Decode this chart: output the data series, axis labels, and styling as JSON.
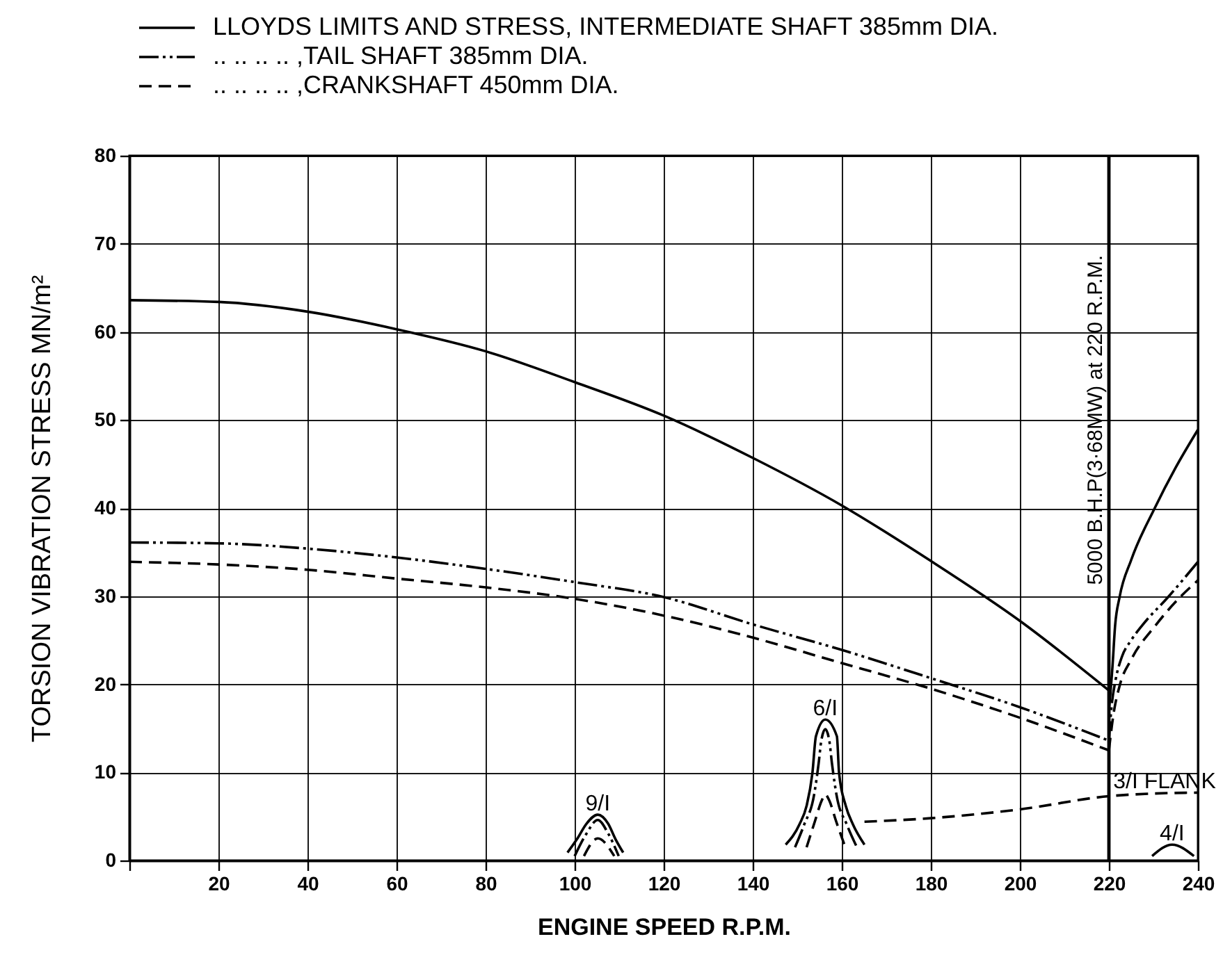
{
  "chart_data": {
    "type": "line",
    "xlabel": "ENGINE SPEED R.P.M.",
    "ylabel": "TORSION VIBRATION STRESS MN/m²",
    "xlim": [
      0,
      240
    ],
    "ylim": [
      0,
      80
    ],
    "xticks": [
      {
        "value": 0,
        "label": null
      },
      20,
      40,
      60,
      80,
      100,
      120,
      140,
      160,
      180,
      200,
      220,
      240
    ],
    "yticks": [
      0,
      10,
      20,
      30,
      40,
      50,
      60,
      70,
      80
    ],
    "grid": true,
    "legend": "top",
    "series": [
      {
        "name": "LLOYDS LIMITS AND STRESS, INTERMEDIATE SHAFT 385mm DIA.",
        "color": "#000000",
        "line_style": "solid",
        "x": [
          0,
          20,
          40,
          60,
          80,
          100,
          120,
          140,
          160,
          180,
          200,
          220
        ],
        "values": [
          63.6,
          63.4,
          62.3,
          60.3,
          57.8,
          54.3,
          50.5,
          45.7,
          40.3,
          34.0,
          27.2,
          19.3
        ]
      },
      {
        "name": ".. .. .. .. ,TAIL SHAFT 385mm DIA.",
        "color": "#000000",
        "line_style": "dashdot",
        "x": [
          0,
          20,
          40,
          60,
          80,
          100,
          120,
          140,
          160,
          180,
          200,
          220
        ],
        "values": [
          36.1,
          36.0,
          35.4,
          34.4,
          33.1,
          31.6,
          29.9,
          26.8,
          23.9,
          20.7,
          17.4,
          13.6
        ]
      },
      {
        "name": ".. .. .. .. ,CRANKSHAFT 450mm DIA.",
        "color": "#000000",
        "line_style": "dashed",
        "x": [
          0,
          20,
          40,
          60,
          80,
          100,
          120,
          140,
          160,
          180,
          200,
          220
        ],
        "values": [
          33.9,
          33.6,
          33.0,
          32.0,
          31.0,
          29.7,
          27.8,
          25.3,
          22.4,
          19.5,
          16.2,
          12.5
        ]
      },
      {
        "color": "#000000",
        "line_style": "solid",
        "x": [
          220,
          220.8,
          221.4,
          222.4,
          225,
          230.2,
          235,
          240
        ],
        "values": [
          17.0,
          22.0,
          26.7,
          29.9,
          34.1,
          39.9,
          44.6,
          48.9
        ]
      },
      {
        "color": "#000000",
        "line_style": "dashdot",
        "x": [
          220,
          220.6,
          221.5,
          222.9,
          225,
          227.5,
          233.3,
          240
        ],
        "values": [
          13.6,
          17.5,
          20.5,
          23.1,
          25.0,
          26.7,
          29.9,
          33.9
        ]
      },
      {
        "color": "#000000",
        "line_style": "dashed",
        "x": [
          220,
          221,
          222.5,
          225,
          230.5,
          236,
          240
        ],
        "values": [
          12.5,
          16.5,
          20.0,
          22.8,
          26.7,
          29.9,
          31.8
        ]
      },
      {
        "color": "#000000",
        "line_style": "solid",
        "x": [
          98.4,
          100.5,
          102.7,
          105.2,
          107.5,
          109.2,
          110.9
        ],
        "values": [
          0.9,
          2.4,
          4.2,
          5.2,
          4.2,
          2.4,
          0.9
        ]
      },
      {
        "color": "#000000",
        "line_style": "dashdot",
        "x": [
          100,
          102.6,
          105.2,
          107.6,
          109.9
        ],
        "values": [
          0.5,
          3.0,
          4.6,
          3.0,
          0.5
        ]
      },
      {
        "color": "#000000",
        "line_style": "dashed",
        "x": [
          102.1,
          105.2,
          108.9
        ],
        "values": [
          0.5,
          2.5,
          0.5
        ]
      },
      {
        "color": "#000000",
        "line_style": "solid",
        "x": [
          147.4,
          150.5,
          152.1,
          153.4,
          154.2,
          156.3,
          158.9,
          159.4,
          160.9,
          162.5,
          165.1
        ],
        "values": [
          1.8,
          4.1,
          6.2,
          9.9,
          14.1,
          16.0,
          14.1,
          9.9,
          6.2,
          4.1,
          1.8
        ]
      },
      {
        "color": "#000000",
        "line_style": "dashdot",
        "x": [
          149.5,
          151.5,
          153.8,
          154.8,
          155.4,
          156.3,
          157.2,
          157.8,
          158.8,
          161.2,
          163.4
        ],
        "values": [
          1.5,
          4.0,
          7.5,
          11.0,
          13.6,
          14.9,
          13.6,
          11.0,
          7.5,
          4.0,
          1.5
        ]
      },
      {
        "color": "#000000",
        "line_style": "dashed",
        "x": [
          152.1,
          154,
          155.5,
          156.3,
          157.2,
          158.7,
          160.8
        ],
        "values": [
          1.5,
          4.5,
          6.8,
          7.5,
          6.8,
          4.5,
          1.5
        ]
      },
      {
        "color": "#000000",
        "line_style": "dashed",
        "x": [
          165.1,
          180,
          200,
          220,
          230,
          240
        ],
        "values": [
          4.4,
          4.8,
          5.8,
          7.3,
          7.6,
          7.7
        ]
      },
      {
        "color": "#000000",
        "line_style": "solid",
        "x": [
          229.7,
          234.2,
          239.1
        ],
        "values": [
          0.5,
          1.8,
          0.5
        ]
      }
    ],
    "ref_lines": [
      {
        "axis": "x",
        "value": 220,
        "label": "5000 B.H.P(3·68MW) at 220 R.P.M.",
        "color": "#000000"
      }
    ],
    "annotations": [
      {
        "text": "9/I",
        "x": 105.2,
        "y": 5.2
      },
      {
        "text": "6/I",
        "x": 156.3,
        "y": 16.0
      },
      {
        "text": "3/I FLANK",
        "x": 232.5,
        "y": 7.7
      },
      {
        "text": "4/I",
        "x": 234.2,
        "y": 1.8
      }
    ]
  }
}
